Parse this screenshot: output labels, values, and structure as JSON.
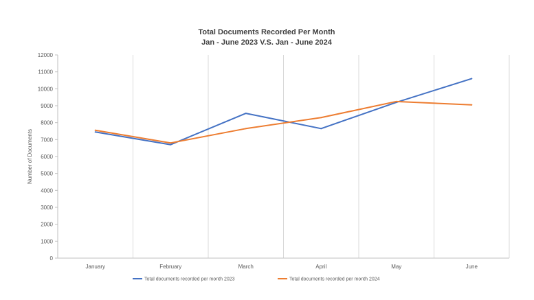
{
  "chart_data": {
    "type": "line",
    "title": "Total Documents Recorded Per Month",
    "subtitle": "Jan - June 2023 V.S. Jan - June 2024",
    "xlabel": "",
    "ylabel": "Number of Documents",
    "categories": [
      "January",
      "February",
      "March",
      "April",
      "May",
      "June"
    ],
    "ylim": [
      0,
      12000
    ],
    "yticks": [
      0,
      1000,
      2000,
      3000,
      4000,
      5000,
      6000,
      7000,
      8000,
      9000,
      10000,
      11000,
      12000
    ],
    "grid": "vertical",
    "legend_position": "bottom",
    "series": [
      {
        "name": "Total documents recorded per month 2023",
        "color": "#4472C4",
        "values": [
          7450,
          6700,
          8550,
          7650,
          9200,
          10600
        ]
      },
      {
        "name": "Total documents recorded per month 2024",
        "color": "#ED7D31",
        "values": [
          7550,
          6800,
          7650,
          8300,
          9250,
          9050
        ]
      }
    ]
  }
}
